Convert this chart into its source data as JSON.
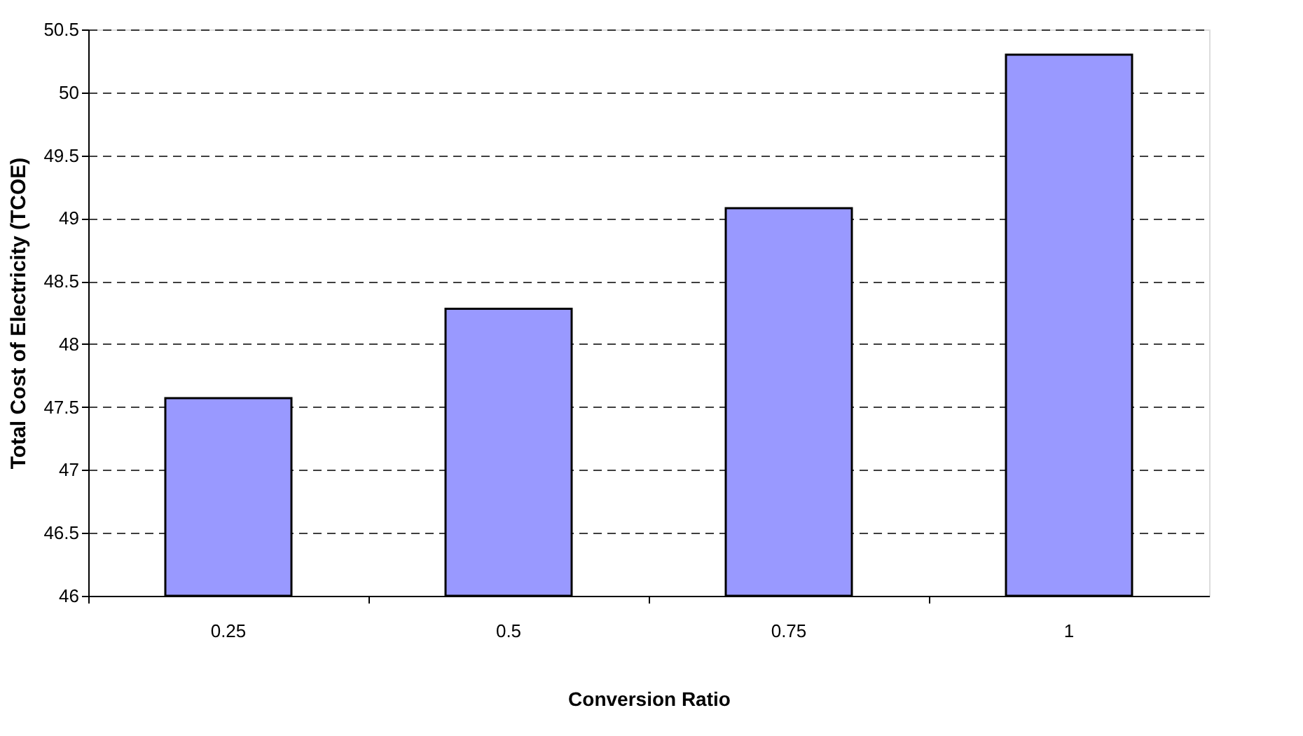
{
  "chart_data": {
    "type": "bar",
    "xlabel": "Conversion Ratio",
    "ylabel": "Total Cost of Electricity (TCOE)",
    "categories": [
      "0.25",
      "0.5",
      "0.75",
      "1"
    ],
    "values": [
      47.57,
      48.28,
      49.08,
      50.3
    ],
    "color": "#9999ff",
    "ylim": [
      46,
      50.5
    ],
    "yticks": [
      46,
      46.5,
      47,
      47.5,
      48,
      48.5,
      49,
      49.5,
      50,
      50.5
    ],
    "grid": "y"
  }
}
